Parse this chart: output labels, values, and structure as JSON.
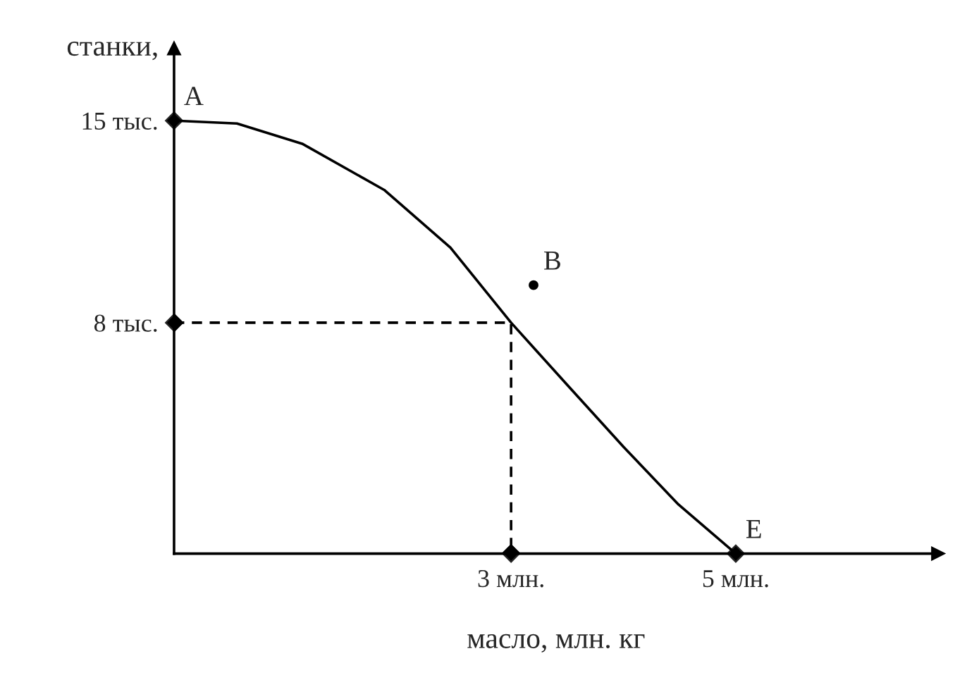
{
  "chart_data": {
    "type": "line",
    "xlabel": "масло, млн. кг",
    "ylabel": "станки,",
    "x": [
      0,
      0.56,
      1.14,
      1.87,
      2.46,
      3,
      3.51,
      4.0,
      4.49,
      5
    ],
    "series": [
      {
        "color": "#000000",
        "marker": "none",
        "values": [
          15,
          14.9,
          14.2,
          12.6,
          10.6,
          8,
          5.8,
          3.7,
          1.7,
          0
        ]
      },
      {
        "type": "line",
        "line_style": "dashed",
        "marker": "diamond",
        "color": "#000000",
        "x": [
          0,
          3,
          3
        ],
        "values": [
          8,
          8,
          0
        ]
      },
      {
        "type": "scatter",
        "marker": "circle",
        "color": "#000000",
        "x": [
          3.2
        ],
        "values": [
          9.3
        ]
      }
    ],
    "xlim": [
      0,
      6.8
    ],
    "ylim": [
      0,
      17.5
    ],
    "xticks": [
      {
        "value": 3,
        "label": "3 млн."
      },
      {
        "value": 5,
        "label": "5 млн."
      }
    ],
    "yticks": [
      {
        "value": 8,
        "label": "8 тыс."
      },
      {
        "value": 15,
        "label": "15 тыс."
      }
    ],
    "annotations": [
      {
        "text": "A",
        "x": 0,
        "y": 15
      },
      {
        "text": "B",
        "x": 3.2,
        "y": 9.3
      },
      {
        "text": "E",
        "x": 5,
        "y": 0
      }
    ],
    "grid": false,
    "legend": false
  }
}
